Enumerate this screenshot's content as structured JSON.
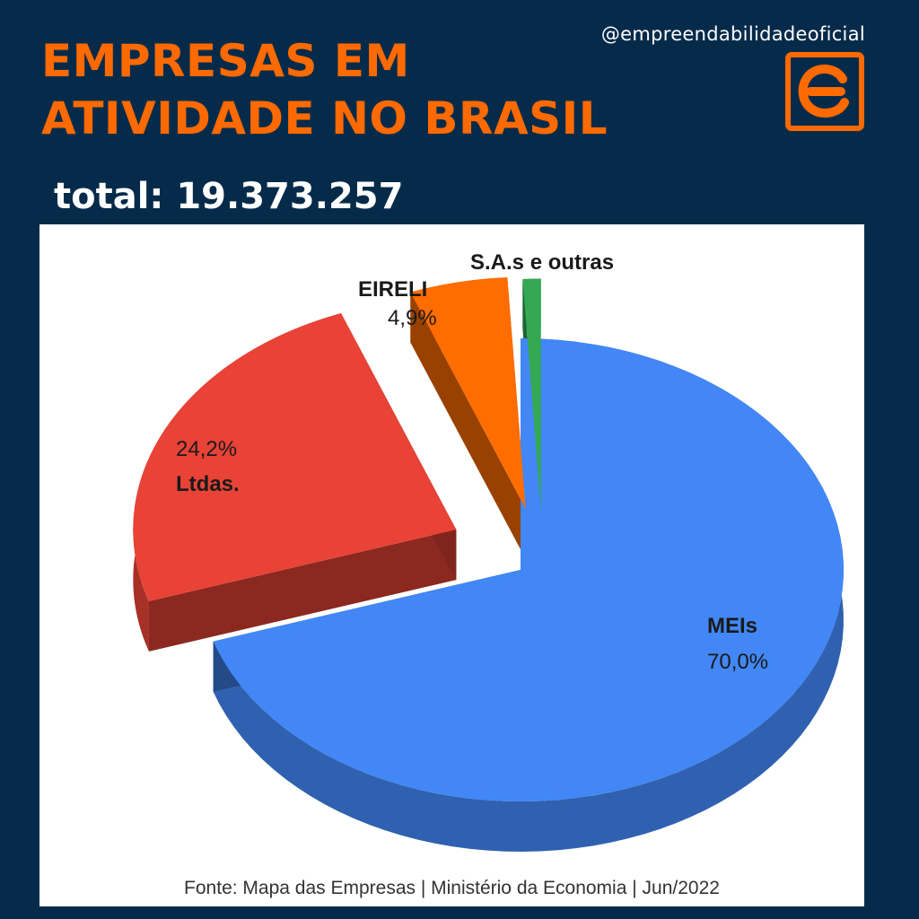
{
  "header": {
    "title_line1": "EMPRESAS EM",
    "title_line2": "ATIVIDADE NO BRASIL",
    "handle": "@empreendabilidadeoficial",
    "logo_icon": "empreendabilidade-logo-icon",
    "total_text": "total: 19.373.257"
  },
  "colors": {
    "background": "#062b4a",
    "accent": "#ff6a00"
  },
  "chart_data": {
    "type": "pie",
    "style": "3d-exploded",
    "title": "",
    "slices": [
      {
        "name": "MEIs",
        "value": 70.0,
        "label": "70,0%",
        "color": "#4287f5"
      },
      {
        "name": "Ltdas.",
        "value": 24.2,
        "label": "24,2%",
        "color": "#e84336"
      },
      {
        "name": "EIRELI",
        "value": 4.9,
        "label": "4,9%",
        "color": "#ff6d00"
      },
      {
        "name": "S.A.s e outras",
        "value": 0.9,
        "label": "",
        "color": "#34a853"
      }
    ]
  },
  "source": "Fonte: Mapa das Empresas | Ministério da Economia | Jun/2022"
}
